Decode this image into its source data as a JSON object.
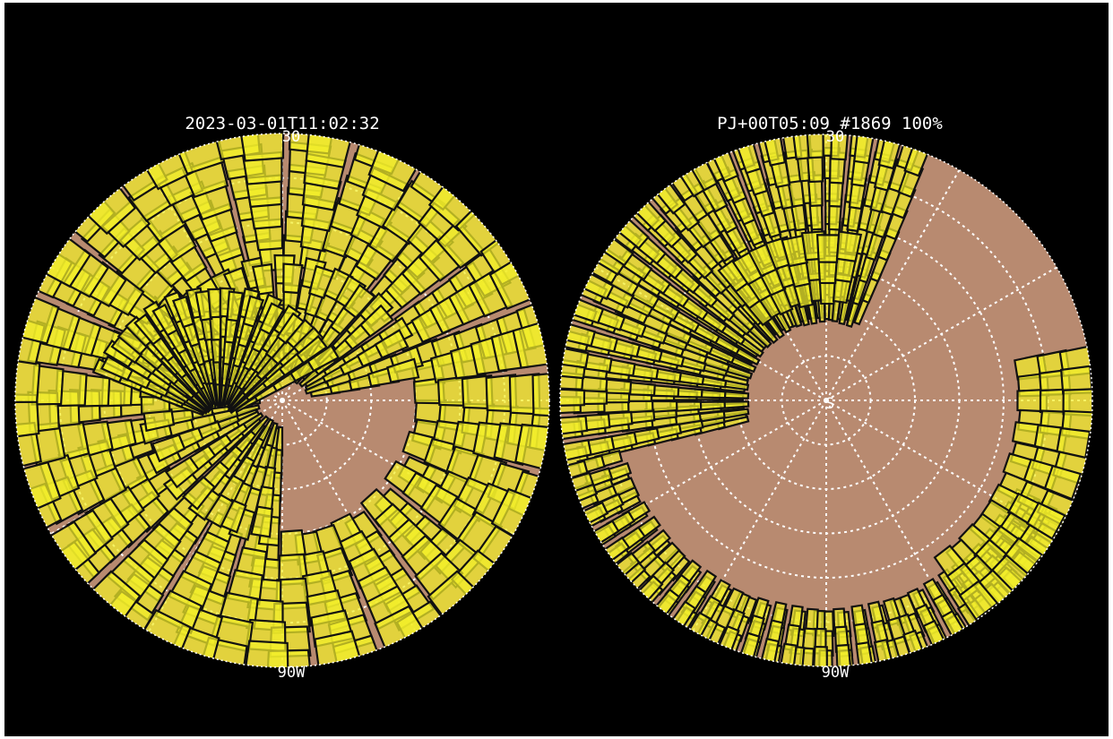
{
  "panels": [
    {
      "title": "2023-03-01T11:02:32",
      "top_label": "30",
      "bottom_label": "90W"
    },
    {
      "title": "PJ+00T05:09 #1869 100%",
      "top_label": "30",
      "bottom_label": "90W",
      "center_label": "S"
    }
  ]
}
